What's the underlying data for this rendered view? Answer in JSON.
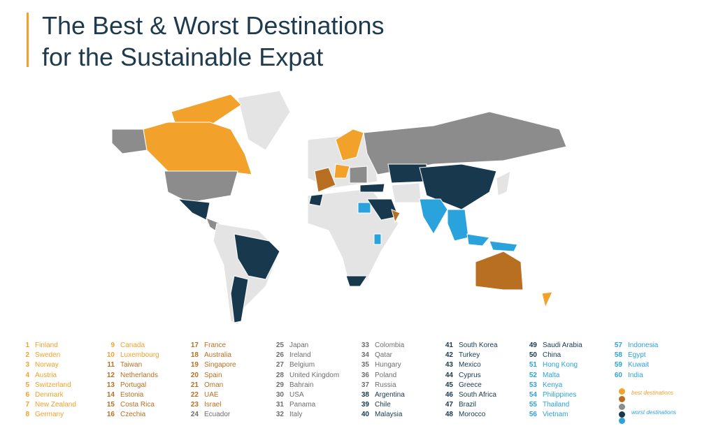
{
  "header": {
    "title_lines": [
      "The Best & Worst Destinations",
      "for the Sustainable Expat"
    ]
  },
  "rankings": [
    {
      "rank": "1",
      "country": "Finland",
      "color": "#f2a12a"
    },
    {
      "rank": "2",
      "country": "Sweden",
      "color": "#f2a12a"
    },
    {
      "rank": "3",
      "country": "Norway",
      "color": "#f2a12a"
    },
    {
      "rank": "4",
      "country": "Austria",
      "color": "#f2a12a"
    },
    {
      "rank": "5",
      "country": "Switzerland",
      "color": "#f2a12a"
    },
    {
      "rank": "6",
      "country": "Denmark",
      "color": "#f2a12a"
    },
    {
      "rank": "7",
      "country": "New Zealand",
      "color": "#f2a12a"
    },
    {
      "rank": "8",
      "country": "Germany",
      "color": "#f2a12a"
    },
    {
      "rank": "9",
      "country": "Canada",
      "color": "#f2a12a"
    },
    {
      "rank": "10",
      "country": "Luxembourg",
      "color": "#f2a12a"
    },
    {
      "rank": "11",
      "country": "Taiwan",
      "color": "#b86f22"
    },
    {
      "rank": "12",
      "country": "Netherlands",
      "color": "#b86f22"
    },
    {
      "rank": "13",
      "country": "Portugal",
      "color": "#b86f22"
    },
    {
      "rank": "14",
      "country": "Estonia",
      "color": "#b86f22"
    },
    {
      "rank": "15",
      "country": "Costa Rica",
      "color": "#b86f22"
    },
    {
      "rank": "16",
      "country": "Czechia",
      "color": "#b86f22"
    },
    {
      "rank": "17",
      "country": "France",
      "color": "#b86f22"
    },
    {
      "rank": "18",
      "country": "Australia",
      "color": "#b86f22"
    },
    {
      "rank": "19",
      "country": "Singapore",
      "color": "#b86f22"
    },
    {
      "rank": "20",
      "country": "Spain",
      "color": "#b86f22"
    },
    {
      "rank": "21",
      "country": "Oman",
      "color": "#b86f22"
    },
    {
      "rank": "22",
      "country": "UAE",
      "color": "#b86f22"
    },
    {
      "rank": "23",
      "country": "Israel",
      "color": "#b86f22"
    },
    {
      "rank": "24",
      "country": "Ecuador",
      "color": "#6e6e6e"
    },
    {
      "rank": "25",
      "country": "Japan",
      "color": "#6e6e6e"
    },
    {
      "rank": "26",
      "country": "Ireland",
      "color": "#6e6e6e"
    },
    {
      "rank": "27",
      "country": "Belgium",
      "color": "#6e6e6e"
    },
    {
      "rank": "28",
      "country": "United Kingdom",
      "color": "#6e6e6e"
    },
    {
      "rank": "29",
      "country": "Bahrain",
      "color": "#6e6e6e"
    },
    {
      "rank": "30",
      "country": "USA",
      "color": "#6e6e6e"
    },
    {
      "rank": "31",
      "country": "Panama",
      "color": "#6e6e6e"
    },
    {
      "rank": "32",
      "country": "Italy",
      "color": "#6e6e6e"
    },
    {
      "rank": "33",
      "country": "Colombia",
      "color": "#6e6e6e"
    },
    {
      "rank": "34",
      "country": "Qatar",
      "color": "#6e6e6e"
    },
    {
      "rank": "35",
      "country": "Hungary",
      "color": "#6e6e6e"
    },
    {
      "rank": "36",
      "country": "Poland",
      "color": "#6e6e6e"
    },
    {
      "rank": "37",
      "country": "Russia",
      "color": "#6e6e6e"
    },
    {
      "rank": "38",
      "country": "Argentina",
      "color": "#17384d"
    },
    {
      "rank": "39",
      "country": "Chile",
      "color": "#17384d"
    },
    {
      "rank": "40",
      "country": "Malaysia",
      "color": "#17384d"
    },
    {
      "rank": "41",
      "country": "South Korea",
      "color": "#17384d"
    },
    {
      "rank": "42",
      "country": "Turkey",
      "color": "#17384d"
    },
    {
      "rank": "43",
      "country": "Mexico",
      "color": "#17384d"
    },
    {
      "rank": "44",
      "country": "Cyprus",
      "color": "#17384d"
    },
    {
      "rank": "45",
      "country": "Greece",
      "color": "#17384d"
    },
    {
      "rank": "46",
      "country": "South Africa",
      "color": "#17384d"
    },
    {
      "rank": "47",
      "country": "Brazil",
      "color": "#17384d"
    },
    {
      "rank": "48",
      "country": "Morocco",
      "color": "#17384d"
    },
    {
      "rank": "49",
      "country": "Saudi Arabia",
      "color": "#17384d"
    },
    {
      "rank": "50",
      "country": "China",
      "color": "#17384d"
    },
    {
      "rank": "51",
      "country": "Hong Kong",
      "color": "#2aa3dc"
    },
    {
      "rank": "52",
      "country": "Malta",
      "color": "#2aa3dc"
    },
    {
      "rank": "53",
      "country": "Kenya",
      "color": "#2aa3dc"
    },
    {
      "rank": "54",
      "country": "Philippines",
      "color": "#2aa3dc"
    },
    {
      "rank": "55",
      "country": "Thailand",
      "color": "#2aa3dc"
    },
    {
      "rank": "56",
      "country": "Vietnam",
      "color": "#2aa3dc"
    },
    {
      "rank": "57",
      "country": "Indonesia",
      "color": "#2aa3dc"
    },
    {
      "rank": "58",
      "country": "Egypt",
      "color": "#2aa3dc"
    },
    {
      "rank": "59",
      "country": "Kuwait",
      "color": "#2aa3dc"
    },
    {
      "rank": "60",
      "country": "India",
      "color": "#2aa3dc"
    }
  ],
  "legend": {
    "best_label": "best destinations",
    "worst_label": "worst destinations",
    "colors": [
      "#f2a12a",
      "#b86f22",
      "#8c8c8c",
      "#17384d",
      "#2aa3dc"
    ]
  }
}
